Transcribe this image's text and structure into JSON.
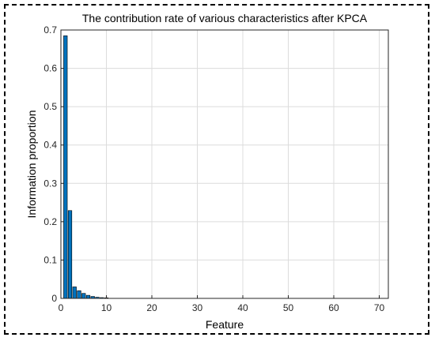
{
  "chart_data": {
    "type": "bar",
    "title": "The contribution rate of various characteristics after KPCA",
    "xlabel": "Feature",
    "ylabel": "Information proportion",
    "xlim": [
      0,
      72
    ],
    "ylim": [
      0,
      0.7
    ],
    "xticks": [
      "0",
      "10",
      "20",
      "30",
      "40",
      "50",
      "60",
      "70"
    ],
    "yticks": [
      "0",
      "0.1",
      "0.2",
      "0.3",
      "0.4",
      "0.5",
      "0.6",
      "0.7"
    ],
    "grid": true,
    "bar_color": "#0072BD",
    "x": [
      1,
      2,
      3,
      4,
      5,
      6,
      7,
      8,
      9,
      10,
      11,
      12,
      13,
      14,
      15,
      16,
      17,
      18,
      19,
      20,
      21,
      22,
      23,
      24,
      25,
      26,
      27,
      28,
      29,
      30,
      31,
      32,
      33,
      34,
      35,
      36,
      37,
      38,
      39,
      40,
      41,
      42,
      43,
      44,
      45,
      46,
      47,
      48,
      49,
      50,
      51,
      52,
      53,
      54,
      55,
      56,
      57,
      58,
      59,
      60,
      61,
      62,
      63,
      64,
      65,
      66,
      67,
      68,
      69,
      70
    ],
    "values": [
      0.685,
      0.229,
      0.03,
      0.02,
      0.013,
      0.008,
      0.005,
      0.003,
      0.002,
      0.0015,
      0.001,
      0.0008,
      0.0006,
      0.0004,
      0.0003,
      0.0002,
      0.00015,
      0.0001,
      0.0001,
      0.0001,
      8e-05,
      6e-05,
      5e-05,
      4e-05,
      3e-05,
      3e-05,
      2e-05,
      2e-05,
      2e-05,
      1e-05,
      1e-05,
      1e-05,
      1e-05,
      1e-05,
      1e-05,
      0,
      0,
      0,
      0,
      0,
      0,
      0,
      0,
      0,
      0,
      0,
      0,
      0,
      0,
      0,
      0,
      0,
      0,
      0,
      0,
      0,
      0,
      0,
      0,
      0,
      0,
      0,
      0,
      0,
      0,
      0,
      0,
      0,
      0,
      0
    ]
  }
}
